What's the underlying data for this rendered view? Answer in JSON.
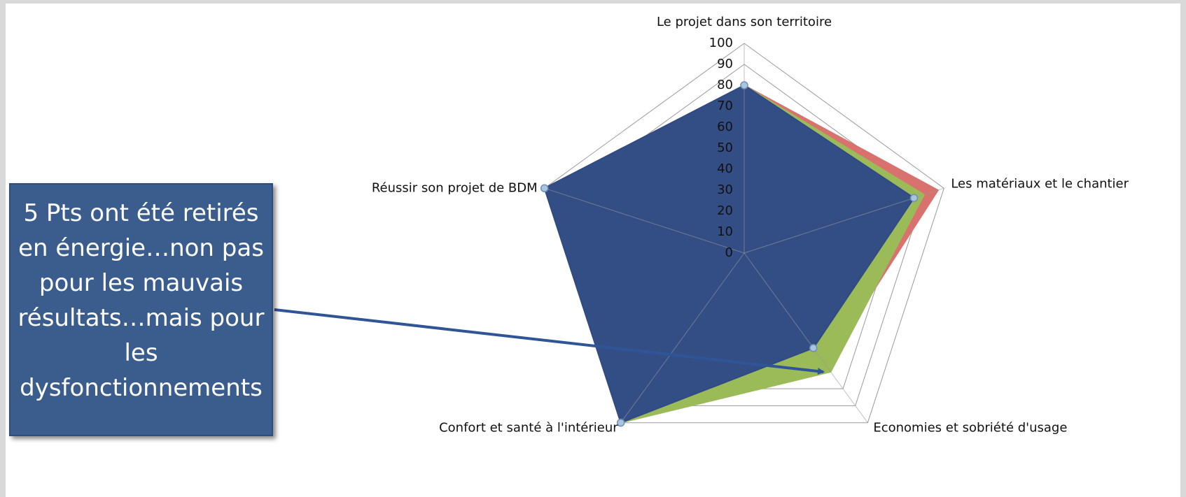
{
  "chart_data": {
    "type": "radar",
    "categories": [
      "Le projet dans son territoire",
      "Les matériaux et le chantier",
      "Economies et sobriété d'usage",
      "Confort et santé à l'intérieur",
      "Réussir son projet de BDM"
    ],
    "series": [
      {
        "color": "#d9726f",
        "values": [
          80,
          97,
          66,
          100,
          100
        ]
      },
      {
        "color": "#9bbb59",
        "values": [
          80,
          90,
          70,
          100,
          100
        ]
      },
      {
        "color": "#2f4a86",
        "values": [
          80,
          85,
          56,
          100,
          100
        ]
      }
    ],
    "rlim": [
      0,
      100
    ],
    "rticks": [
      0,
      10,
      20,
      30,
      40,
      50,
      60,
      70,
      80,
      90,
      100
    ],
    "grid": true,
    "annotation": "5 Pts ont été retirés en énergie…non pas pour les mauvais résultats…mais pour les dysfonctionnements"
  }
}
